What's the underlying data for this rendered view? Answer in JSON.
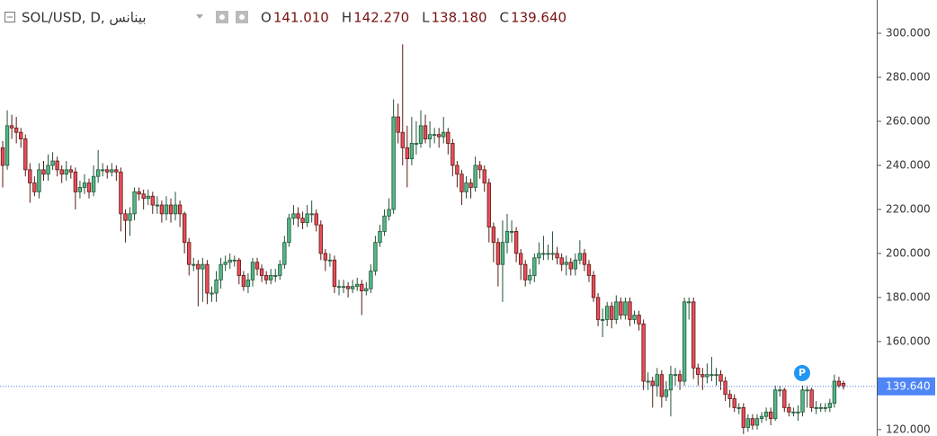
{
  "chart_data": {
    "type": "candlestick",
    "legend": {
      "symbol": "SOL/USD, D, بينانس",
      "fields": [
        {
          "label": "O",
          "value": "141.010"
        },
        {
          "label": "H",
          "value": "142.270"
        },
        {
          "label": "L",
          "value": "138.180"
        },
        {
          "label": "C",
          "value": "139.640"
        }
      ]
    },
    "ohlc": [
      [
        248,
        251,
        230,
        240
      ],
      [
        240,
        265,
        238,
        258
      ],
      [
        258,
        263,
        252,
        257
      ],
      [
        257,
        262,
        250,
        255
      ],
      [
        255,
        257,
        248,
        252
      ],
      [
        252,
        254,
        235,
        238
      ],
      [
        238,
        241,
        223,
        232
      ],
      [
        232,
        235,
        226,
        228
      ],
      [
        228,
        241,
        225,
        238
      ],
      [
        238,
        242,
        233,
        236
      ],
      [
        236,
        245,
        233,
        240
      ],
      [
        240,
        246,
        238,
        242
      ],
      [
        242,
        244,
        235,
        238
      ],
      [
        238,
        240,
        232,
        236
      ],
      [
        236,
        242,
        233,
        238
      ],
      [
        238,
        240,
        234,
        237
      ],
      [
        237,
        239,
        220,
        228
      ],
      [
        228,
        233,
        225,
        230
      ],
      [
        230,
        236,
        227,
        232
      ],
      [
        232,
        234,
        225,
        228
      ],
      [
        228,
        240,
        226,
        235
      ],
      [
        235,
        247,
        232,
        238
      ],
      [
        238,
        241,
        235,
        238
      ],
      [
        238,
        240,
        234,
        237
      ],
      [
        237,
        241,
        235,
        238
      ],
      [
        238,
        240,
        233,
        237
      ],
      [
        237,
        239,
        210,
        218
      ],
      [
        218,
        220,
        205,
        215
      ],
      [
        215,
        221,
        208,
        218
      ],
      [
        218,
        230,
        215,
        228
      ],
      [
        228,
        230,
        224,
        227
      ],
      [
        227,
        229,
        220,
        225
      ],
      [
        225,
        229,
        222,
        226
      ],
      [
        226,
        228,
        218,
        222
      ],
      [
        222,
        226,
        218,
        222
      ],
      [
        222,
        224,
        214,
        218
      ],
      [
        218,
        226,
        215,
        222
      ],
      [
        222,
        225,
        214,
        218
      ],
      [
        218,
        228,
        215,
        222
      ],
      [
        222,
        224,
        212,
        218
      ],
      [
        218,
        219,
        200,
        205
      ],
      [
        205,
        207,
        190,
        195
      ],
      [
        195,
        198,
        192,
        195
      ],
      [
        195,
        197,
        176,
        193
      ],
      [
        193,
        198,
        178,
        195
      ],
      [
        195,
        197,
        177,
        182
      ],
      [
        182,
        185,
        178,
        182
      ],
      [
        182,
        192,
        178,
        188
      ],
      [
        188,
        198,
        184,
        195
      ],
      [
        195,
        199,
        192,
        196
      ],
      [
        196,
        200,
        193,
        197
      ],
      [
        197,
        199,
        194,
        197
      ],
      [
        197,
        198,
        186,
        190
      ],
      [
        190,
        192,
        183,
        185
      ],
      [
        185,
        191,
        182,
        188
      ],
      [
        188,
        198,
        185,
        196
      ],
      [
        196,
        198,
        190,
        193
      ],
      [
        193,
        195,
        187,
        190
      ],
      [
        190,
        192,
        186,
        188
      ],
      [
        188,
        193,
        186,
        190
      ],
      [
        190,
        193,
        187,
        190
      ],
      [
        190,
        197,
        188,
        195
      ],
      [
        195,
        208,
        193,
        205
      ],
      [
        205,
        218,
        203,
        216
      ],
      [
        216,
        222,
        213,
        218
      ],
      [
        218,
        221,
        212,
        216
      ],
      [
        216,
        219,
        211,
        214
      ],
      [
        214,
        222,
        212,
        218
      ],
      [
        218,
        224,
        214,
        218
      ],
      [
        218,
        220,
        210,
        213
      ],
      [
        213,
        215,
        197,
        200
      ],
      [
        200,
        202,
        192,
        197
      ],
      [
        197,
        200,
        194,
        197
      ],
      [
        197,
        199,
        182,
        185
      ],
      [
        185,
        188,
        181,
        185
      ],
      [
        185,
        188,
        182,
        185
      ],
      [
        185,
        187,
        180,
        184
      ],
      [
        184,
        188,
        182,
        185
      ],
      [
        185,
        189,
        183,
        186
      ],
      [
        186,
        188,
        172,
        183
      ],
      [
        183,
        187,
        181,
        184
      ],
      [
        184,
        195,
        182,
        192
      ],
      [
        192,
        208,
        190,
        205
      ],
      [
        205,
        213,
        203,
        210
      ],
      [
        210,
        220,
        208,
        217
      ],
      [
        217,
        225,
        215,
        220
      ],
      [
        220,
        270,
        218,
        262
      ],
      [
        262,
        268,
        250,
        255
      ],
      [
        255,
        295,
        240,
        248
      ],
      [
        248,
        258,
        230,
        243
      ],
      [
        243,
        262,
        240,
        250
      ],
      [
        250,
        260,
        245,
        250
      ],
      [
        250,
        265,
        248,
        258
      ],
      [
        258,
        263,
        250,
        252
      ],
      [
        252,
        260,
        248,
        254
      ],
      [
        254,
        257,
        250,
        254
      ],
      [
        254,
        257,
        248,
        253
      ],
      [
        253,
        262,
        250,
        255
      ],
      [
        255,
        257,
        245,
        250
      ],
      [
        250,
        252,
        235,
        240
      ],
      [
        240,
        242,
        230,
        236
      ],
      [
        236,
        238,
        222,
        228
      ],
      [
        228,
        235,
        225,
        232
      ],
      [
        232,
        234,
        225,
        230
      ],
      [
        230,
        244,
        228,
        240
      ],
      [
        240,
        242,
        234,
        238
      ],
      [
        238,
        240,
        228,
        232
      ],
      [
        232,
        234,
        205,
        212
      ],
      [
        212,
        214,
        196,
        205
      ],
      [
        205,
        207,
        185,
        195
      ],
      [
        195,
        215,
        178,
        205
      ],
      [
        205,
        218,
        200,
        210
      ],
      [
        210,
        215,
        205,
        210
      ],
      [
        210,
        212,
        196,
        200
      ],
      [
        200,
        202,
        188,
        195
      ],
      [
        195,
        197,
        185,
        188
      ],
      [
        188,
        193,
        186,
        190
      ],
      [
        190,
        200,
        187,
        198
      ],
      [
        198,
        205,
        195,
        200
      ],
      [
        200,
        208,
        197,
        200
      ],
      [
        200,
        204,
        197,
        200
      ],
      [
        200,
        210,
        197,
        200
      ],
      [
        200,
        203,
        195,
        198
      ],
      [
        198,
        200,
        192,
        195
      ],
      [
        195,
        199,
        190,
        196
      ],
      [
        196,
        198,
        190,
        193
      ],
      [
        193,
        200,
        190,
        197
      ],
      [
        197,
        206,
        195,
        200
      ],
      [
        200,
        202,
        192,
        195
      ],
      [
        195,
        197,
        187,
        190
      ],
      [
        190,
        192,
        178,
        180
      ],
      [
        180,
        182,
        167,
        170
      ],
      [
        170,
        175,
        162,
        170
      ],
      [
        170,
        178,
        167,
        176
      ],
      [
        176,
        178,
        166,
        170
      ],
      [
        170,
        181,
        168,
        178
      ],
      [
        178,
        180,
        170,
        172
      ],
      [
        172,
        180,
        170,
        178
      ],
      [
        178,
        180,
        167,
        170
      ],
      [
        170,
        174,
        168,
        172
      ],
      [
        172,
        174,
        165,
        168
      ],
      [
        168,
        170,
        138,
        142
      ],
      [
        142,
        146,
        138,
        142
      ],
      [
        142,
        144,
        130,
        140
      ],
      [
        140,
        148,
        135,
        145
      ],
      [
        145,
        147,
        130,
        135
      ],
      [
        135,
        142,
        133,
        138
      ],
      [
        138,
        149,
        126,
        145
      ],
      [
        145,
        148,
        140,
        145
      ],
      [
        145,
        147,
        138,
        142
      ],
      [
        142,
        180,
        140,
        178
      ],
      [
        178,
        180,
        170,
        178
      ],
      [
        178,
        180,
        143,
        148
      ],
      [
        148,
        150,
        140,
        145
      ],
      [
        145,
        148,
        138,
        144
      ],
      [
        144,
        150,
        141,
        145
      ],
      [
        145,
        153,
        142,
        145
      ],
      [
        145,
        148,
        140,
        145
      ],
      [
        145,
        147,
        138,
        142
      ],
      [
        142,
        144,
        133,
        136
      ],
      [
        136,
        138,
        130,
        134
      ],
      [
        134,
        136,
        128,
        130
      ],
      [
        130,
        132,
        127,
        130
      ],
      [
        130,
        132,
        118,
        121
      ],
      [
        121,
        127,
        119,
        125
      ],
      [
        125,
        127,
        120,
        122
      ],
      [
        122,
        127,
        120,
        125
      ],
      [
        125,
        128,
        123,
        126
      ],
      [
        126,
        130,
        124,
        128
      ],
      [
        128,
        130,
        122,
        125
      ],
      [
        125,
        140,
        124,
        138
      ],
      [
        138,
        140,
        135,
        138
      ],
      [
        138,
        139,
        128,
        130
      ],
      [
        130,
        132,
        126,
        128
      ],
      [
        128,
        130,
        126,
        128
      ],
      [
        128,
        131,
        124,
        128
      ],
      [
        128,
        140,
        126,
        138
      ],
      [
        138,
        140,
        130,
        138
      ],
      [
        138,
        139,
        128,
        130
      ],
      [
        130,
        133,
        127,
        130
      ],
      [
        130,
        132,
        128,
        130
      ],
      [
        130,
        132,
        128,
        130
      ],
      [
        130,
        134,
        128,
        132
      ],
      [
        132,
        145,
        130,
        142
      ],
      [
        142,
        144,
        139,
        140
      ],
      [
        141.01,
        142.27,
        138.18,
        139.64
      ]
    ],
    "up_color": "#53b987",
    "down_color": "#eb4d5c",
    "last_price": {
      "value": 139.64,
      "label": "139.640"
    },
    "marker": "P",
    "ylim": [
      117.1,
      315.1
    ],
    "yticks": [
      {
        "value": 120,
        "label": "120.000"
      },
      {
        "value": 140,
        "label": "140.000"
      },
      {
        "value": 160,
        "label": "160.000"
      },
      {
        "value": 180,
        "label": "180.000"
      },
      {
        "value": 200,
        "label": "200.000"
      },
      {
        "value": 220,
        "label": "220.000"
      },
      {
        "value": 240,
        "label": "240.000"
      },
      {
        "value": 260,
        "label": "260.000"
      },
      {
        "value": 280,
        "label": "280.000"
      },
      {
        "value": 300,
        "label": "300.000"
      }
    ]
  }
}
